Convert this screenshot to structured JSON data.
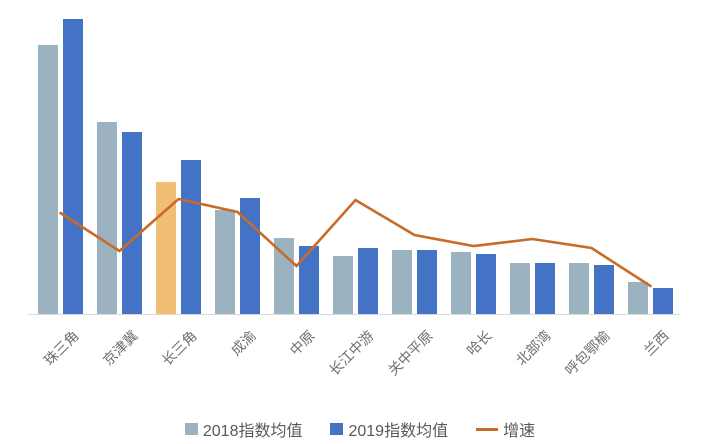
{
  "chart_data": {
    "type": "bar",
    "subtype": "grouped-bars-with-line-overlay",
    "categories": [
      "珠三角",
      "京津冀",
      "长三角",
      "成渝",
      "中原",
      "长江中游",
      "关中平原",
      "哈长",
      "北部湾",
      "呼包鄂榆",
      "兰西"
    ],
    "series": [
      {
        "name": "2018指数均值",
        "type": "bar",
        "color": "#9bb2c1",
        "values": [
          269,
          192,
          132,
          104,
          76,
          58,
          64,
          62,
          51,
          51,
          32
        ],
        "highlight_index": 2,
        "highlight_color": "#f0be74"
      },
      {
        "name": "2019指数均值",
        "type": "bar",
        "color": "#4472c4",
        "values": [
          295,
          182,
          154,
          116,
          68,
          66,
          64,
          60,
          51,
          49,
          26
        ]
      },
      {
        "name": "增速",
        "type": "line",
        "color": "#c86a28",
        "values": [
          101,
          63,
          115,
          102,
          48,
          114,
          79,
          68,
          75,
          66,
          28
        ]
      }
    ],
    "unit": "relative units (no value-axis labels visible in chart)",
    "title": "",
    "xlabel": "",
    "ylabel": "",
    "grid": false,
    "value_axis_visible": false,
    "legend_position": "bottom",
    "axis_line_color": "#d9d9d9",
    "xlabel_color": "#6e6e6e",
    "legend_text_color": "#595959"
  }
}
